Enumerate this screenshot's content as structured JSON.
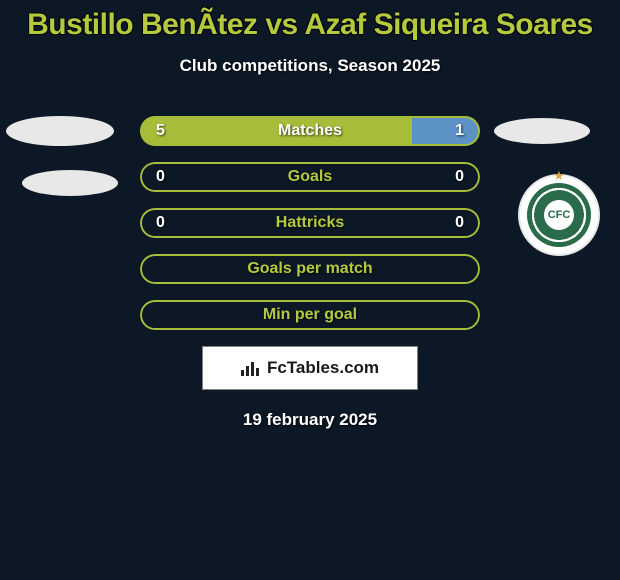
{
  "title": "Bustillo BenÃ­tez vs Azaf Siqueira Soares",
  "subtitle": "Club competitions, Season 2025",
  "date": "19 february 2025",
  "watermark": "FcTables.com",
  "colors": {
    "background": "#0d1826",
    "title": "#b4c93d",
    "left_fill": "#a7bd3a",
    "right_fill": "#5c92c6",
    "label_green": "#b4c93d",
    "text_white": "#ffffff",
    "border_green": "#a7bd3a"
  },
  "stats": [
    {
      "label": "Matches",
      "left_value": "5",
      "right_value": "1",
      "left_width_pct": 80,
      "right_width_pct": 20,
      "label_color": "#ffffff",
      "left_fill": "#a7bd3a",
      "right_fill": "#5c92c6",
      "border_color": "#a7bd3a",
      "show_values": true
    },
    {
      "label": "Goals",
      "left_value": "0",
      "right_value": "0",
      "left_width_pct": 0,
      "right_width_pct": 0,
      "label_color": "#b4c93d",
      "left_fill": "#a7bd3a",
      "right_fill": "#5c92c6",
      "border_color": "#a7bd3a",
      "show_values": true
    },
    {
      "label": "Hattricks",
      "left_value": "0",
      "right_value": "0",
      "left_width_pct": 0,
      "right_width_pct": 0,
      "label_color": "#b4c93d",
      "left_fill": "#a7bd3a",
      "right_fill": "#5c92c6",
      "border_color": "#a7bd3a",
      "show_values": true
    },
    {
      "label": "Goals per match",
      "left_value": "",
      "right_value": "",
      "left_width_pct": 0,
      "right_width_pct": 0,
      "label_color": "#b4c93d",
      "left_fill": "#a7bd3a",
      "right_fill": "#5c92c6",
      "border_color": "#a7bd3a",
      "show_values": false
    },
    {
      "label": "Min per goal",
      "left_value": "",
      "right_value": "",
      "left_width_pct": 0,
      "right_width_pct": 0,
      "label_color": "#b4c93d",
      "left_fill": "#a7bd3a",
      "right_fill": "#5c92c6",
      "border_color": "#a7bd3a",
      "show_values": false
    }
  ],
  "right_club": {
    "abbrev": "CFC",
    "outer_ring": "#2a6b4a"
  }
}
